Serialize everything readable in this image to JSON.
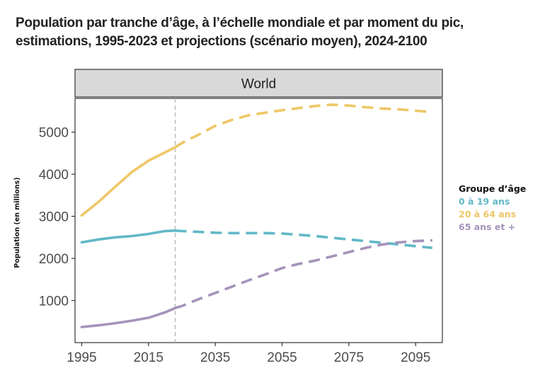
{
  "title_lines": [
    "Population par tranche d’âge, à l’échelle mondiale et par moment du pic,",
    "estimations, 1995-2023 et projections (scénario moyen), 2024-2100"
  ],
  "chart_data": {
    "type": "line",
    "facet_label": "World",
    "ylabel": "Population (en millions)",
    "xlabel": "",
    "xlim": [
      1993,
      2103
    ],
    "ylim": [
      0,
      5800
    ],
    "x_ticks": [
      1995,
      2015,
      2035,
      2055,
      2075,
      2095
    ],
    "y_ticks": [
      1000,
      2000,
      3000,
      4000,
      5000
    ],
    "estimate_end_year": 2023,
    "vertical_reference_line": 2023,
    "grid": false,
    "legend_title": "Groupe d’âge",
    "legend_position": "right",
    "series": [
      {
        "name": "0 à 19 ans",
        "color": "#62b8c7",
        "x": [
          1995,
          2000,
          2005,
          2010,
          2015,
          2020,
          2023,
          2025,
          2030,
          2035,
          2040,
          2045,
          2050,
          2055,
          2060,
          2065,
          2070,
          2075,
          2080,
          2085,
          2090,
          2095,
          2100
        ],
        "values": [
          2380,
          2450,
          2500,
          2530,
          2580,
          2650,
          2660,
          2650,
          2630,
          2610,
          2600,
          2600,
          2600,
          2590,
          2560,
          2530,
          2490,
          2450,
          2410,
          2370,
          2330,
          2290,
          2250
        ]
      },
      {
        "name": "20 à 64 ans",
        "color": "#eec766",
        "x": [
          1995,
          2000,
          2005,
          2010,
          2015,
          2020,
          2023,
          2025,
          2030,
          2035,
          2040,
          2045,
          2050,
          2055,
          2060,
          2065,
          2070,
          2075,
          2080,
          2085,
          2090,
          2095,
          2100
        ],
        "values": [
          3020,
          3340,
          3700,
          4050,
          4320,
          4520,
          4640,
          4740,
          4940,
          5150,
          5290,
          5400,
          5460,
          5520,
          5570,
          5620,
          5650,
          5630,
          5590,
          5560,
          5540,
          5510,
          5470
        ]
      },
      {
        "name": "65 ans et +",
        "color": "#a593bb",
        "x": [
          1995,
          2000,
          2005,
          2010,
          2015,
          2020,
          2023,
          2025,
          2030,
          2035,
          2040,
          2045,
          2050,
          2055,
          2060,
          2065,
          2070,
          2075,
          2080,
          2085,
          2090,
          2095,
          2100
        ],
        "values": [
          370,
          410,
          460,
          520,
          590,
          720,
          820,
          870,
          1030,
          1180,
          1330,
          1480,
          1620,
          1770,
          1870,
          1950,
          2050,
          2150,
          2250,
          2330,
          2380,
          2410,
          2430
        ]
      }
    ]
  }
}
